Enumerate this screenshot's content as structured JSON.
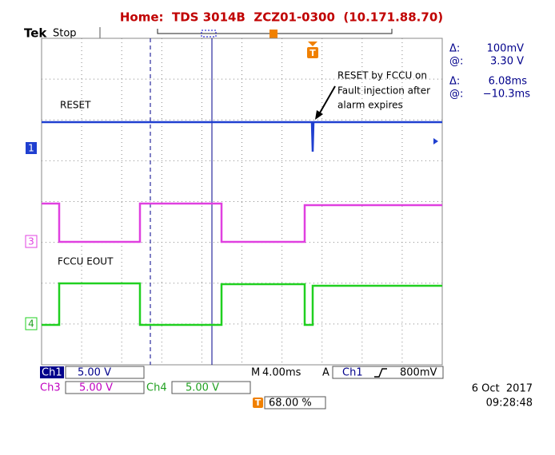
{
  "header": {
    "title": "Home:  TDS 3014B  ZCZ01-0300  (10.171.88.70)"
  },
  "status": {
    "brand": "Tek",
    "state": "Stop"
  },
  "cursors": [
    {
      "symbol": "Δ:",
      "value": "100mV"
    },
    {
      "symbol": "@:",
      "value": "3.30 V"
    },
    {
      "symbol": "Δ:",
      "value": "6.08ms"
    },
    {
      "symbol": "@:",
      "value": "−10.3ms"
    }
  ],
  "annotation": [
    "RESET by FCCU on",
    "Fault injection after",
    "alarm expires"
  ],
  "traces": [
    {
      "marker": "1",
      "label": "RESET"
    },
    {
      "marker": "3"
    },
    {
      "marker": "4",
      "label": "FCCU EOUT"
    }
  ],
  "trigger_marker": "T",
  "settings": {
    "ch1": {
      "name": "Ch1",
      "scale": "5.00 V"
    },
    "ch3": {
      "name": "Ch3",
      "scale": "5.00 V"
    },
    "ch4": {
      "name": "Ch4",
      "scale": "5.00 V"
    },
    "timebase": {
      "name": "M",
      "scale": "4.00ms"
    },
    "trigger": {
      "mode": "A",
      "source": "Ch1",
      "level": "800mV"
    },
    "trigger_position": "68.00 %"
  },
  "date": "6 Oct  2017",
  "time": "09:28:48"
}
